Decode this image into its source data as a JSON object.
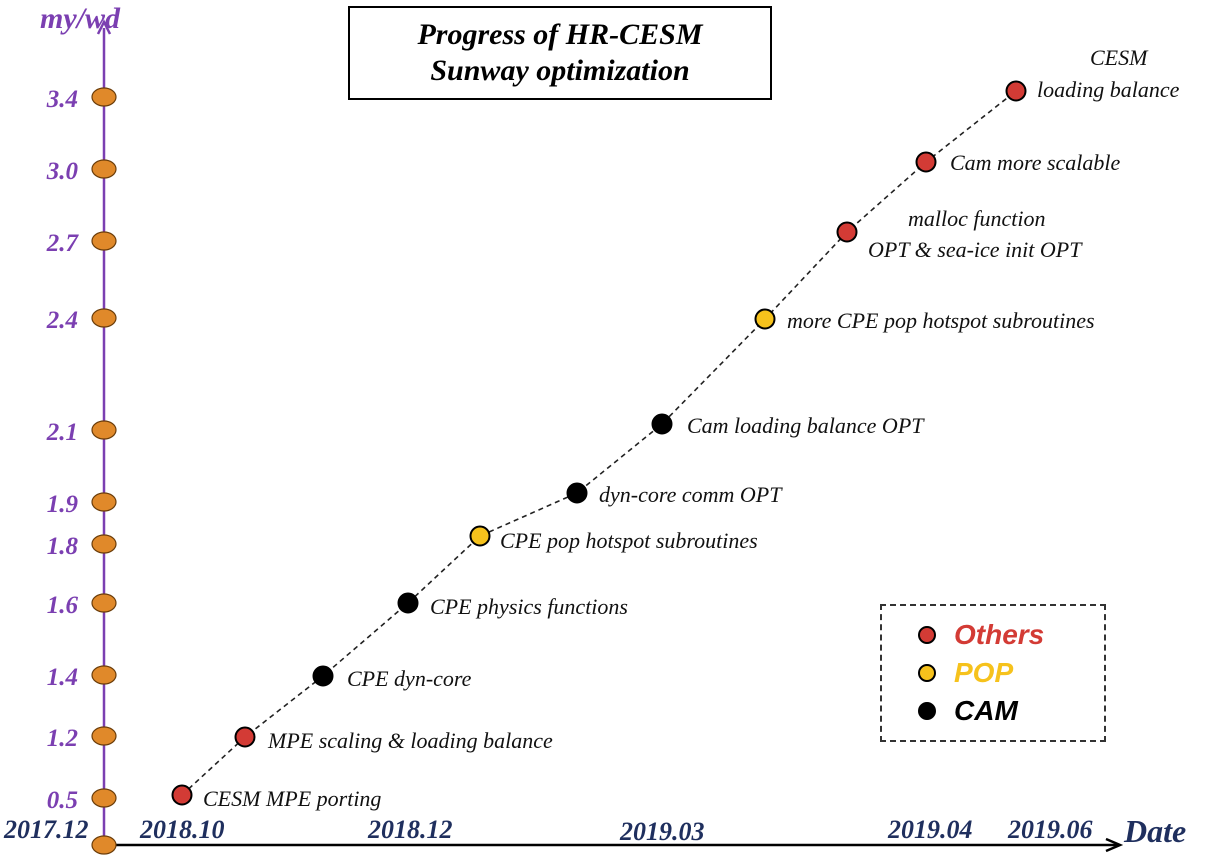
{
  "title": {
    "line1": "Progress of HR-CESM",
    "line2": "Sunway optimization"
  },
  "colors": {
    "axis": "#7b3fb1",
    "others": "#d33b35",
    "pop": "#f6c21c",
    "cam": "#000000",
    "y_dot": "#e0892a",
    "x_label": "#1f2f5e"
  },
  "legend": [
    {
      "label": "Others",
      "category": "others"
    },
    {
      "label": "POP",
      "category": "pop"
    },
    {
      "label": "CAM",
      "category": "cam"
    }
  ],
  "chart_data": {
    "type": "line",
    "title": "Progress of HR-CESM Sunway optimization",
    "xlabel": "Date",
    "ylabel": "my/wd",
    "x_tick_labels": [
      "2017.12",
      "2018.10",
      "2018.12",
      "2019.03",
      "2019.04",
      "2019.06"
    ],
    "y_tick_labels": [
      "0.5",
      "1.2",
      "1.4",
      "1.6",
      "1.8",
      "1.9",
      "2.1",
      "2.4",
      "2.7",
      "3.0",
      "3.4"
    ],
    "grid": false,
    "legend_position": "bottom-right",
    "points": [
      {
        "label": "CESM MPE porting",
        "category": "others",
        "y": 0.5
      },
      {
        "label": "MPE scaling & loading balance",
        "category": "others",
        "y": 1.2
      },
      {
        "label": "CPE dyn-core",
        "category": "cam",
        "y": 1.4
      },
      {
        "label": "CPE physics functions",
        "category": "cam",
        "y": 1.6
      },
      {
        "label": "CPE pop hotspot subroutines",
        "category": "pop",
        "y": 1.8
      },
      {
        "label": "dyn-core comm OPT",
        "category": "cam",
        "y": 1.9
      },
      {
        "label": "Cam loading balance OPT",
        "category": "cam",
        "y": 2.1
      },
      {
        "label": "more CPE pop hotspot subroutines",
        "category": "pop",
        "y": 2.4
      },
      {
        "label": "malloc function\nOPT & sea-ice init OPT",
        "category": "others",
        "y": 2.7
      },
      {
        "label": "Cam more scalable",
        "category": "others",
        "y": 3.0
      },
      {
        "label": "CESM\nloading balance",
        "category": "others",
        "y": 3.4
      }
    ]
  }
}
